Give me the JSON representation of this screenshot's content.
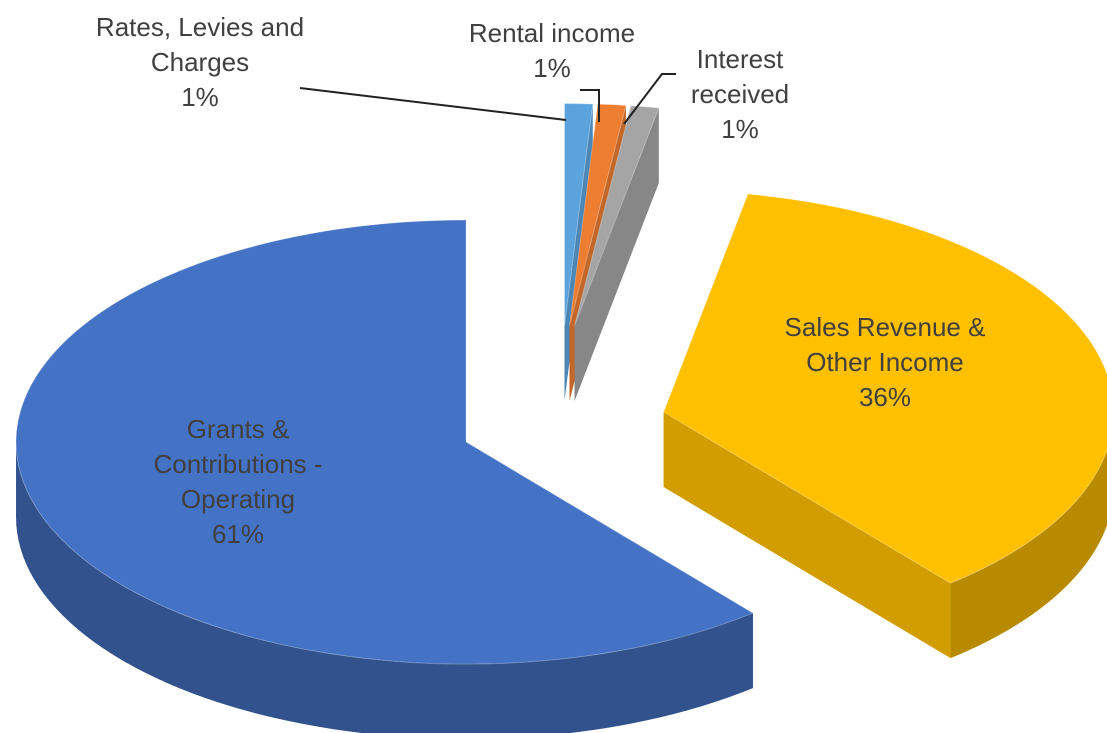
{
  "chart_data": {
    "type": "pie",
    "categories": [
      "Rates, Levies and Charges",
      "Rental income",
      "Interest received",
      "Sales Revenue & Other Income",
      "Grants & Contributions - Operating"
    ],
    "values": [
      1,
      1,
      1,
      36,
      61
    ],
    "value_labels": [
      "1%",
      "1%",
      "1%",
      "36%",
      "61%"
    ],
    "colors": [
      "#5ba3dc",
      "#ed7d31",
      "#a5a5a5",
      "#ffc000",
      "#4472c4"
    ]
  }
}
